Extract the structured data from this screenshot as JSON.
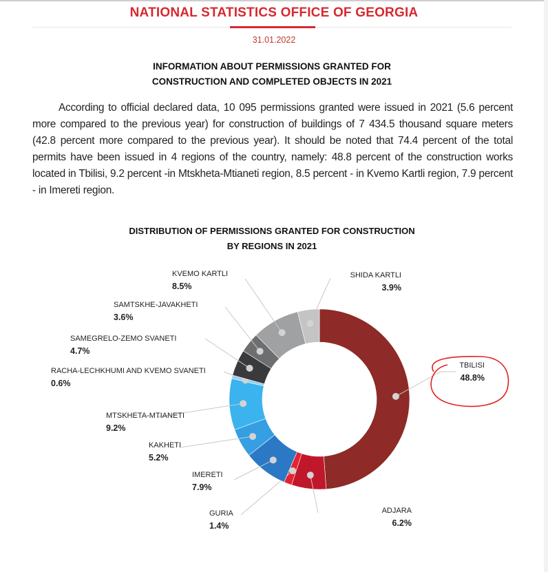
{
  "header": {
    "organization": "NATIONAL STATISTICS OFFICE OF GEORGIA",
    "date": "31.01.2022",
    "title_line1": "INFORMATION ABOUT PERMISSIONS GRANTED FOR",
    "title_line2": "CONSTRUCTION AND COMPLETED OBJECTS IN 2021"
  },
  "body": {
    "paragraph": "According to official declared data, 10 095 permissions granted were issued in 2021 (5.6 percent more compared to the previous year) for construction of buildings of 7 434.5 thousand square meters (42.8 percent more compared to the previous year). It should be noted that 74.4 percent of the total permits have been issued in 4 regions of the country, namely: 48.8 percent of the construction works located in Tbilisi, 9.2 percent -in Mtskheta-Mtianeti region, 8.5 percent - in Kvemo Kartli region, 7.9 percent - in Imereti region."
  },
  "chart_data": {
    "type": "pie",
    "donut": true,
    "title_line1": "DISTRIBUTION OF PERMISSIONS GRANTED FOR CONSTRUCTION",
    "title_line2": "BY REGIONS IN 2021",
    "unit": "%",
    "highlight": "TBILISI",
    "highlight_color": "#e0211f",
    "slices": [
      {
        "label": "TBILISI",
        "value": 48.8,
        "value_label": "48.8%",
        "color": "#8e2a27"
      },
      {
        "label": "ADJARA",
        "value": 6.2,
        "value_label": "6.2%",
        "color": "#c0172a"
      },
      {
        "label": "GURIA",
        "value": 1.4,
        "value_label": "1.4%",
        "color": "#e52330"
      },
      {
        "label": "IMERETI",
        "value": 7.9,
        "value_label": "7.9%",
        "color": "#2b78c4"
      },
      {
        "label": "KAKHETI",
        "value": 5.2,
        "value_label": "5.2%",
        "color": "#349fe2"
      },
      {
        "label": "MTSKHETA-MTIANETI",
        "value": 9.2,
        "value_label": "9.2%",
        "color": "#3bb3ee"
      },
      {
        "label": "RACHA-LECHKHUMI AND KVEMO SVANETI",
        "value": 0.6,
        "value_label": "0.6%",
        "color": "#8fd0f2"
      },
      {
        "label": "SAMEGRELO-ZEMO SVANETI",
        "value": 4.7,
        "value_label": "4.7%",
        "color": "#3a3a3c"
      },
      {
        "label": "SAMTSKHE-JAVAKHETI",
        "value": 3.6,
        "value_label": "3.6%",
        "color": "#6d6e70"
      },
      {
        "label": "KVEMO KARTLI",
        "value": 8.5,
        "value_label": "8.5%",
        "color": "#a0a1a3"
      },
      {
        "label": "SHIDA KARTLI",
        "value": 3.9,
        "value_label": "3.9%",
        "color": "#c4c4c6"
      }
    ]
  }
}
